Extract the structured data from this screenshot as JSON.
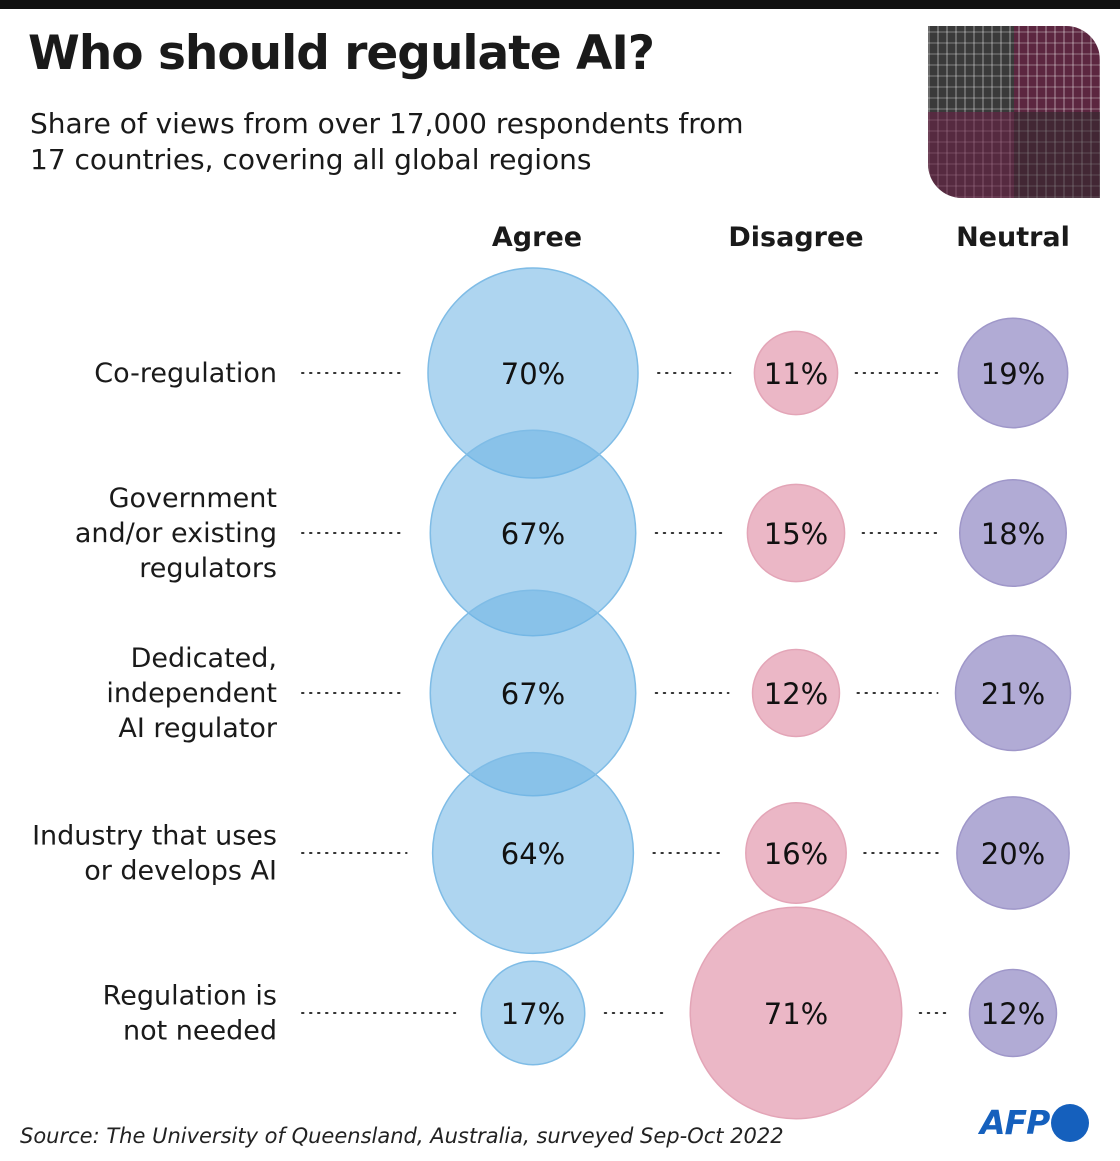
{
  "title": "Who should regulate AI?",
  "subtitle": "Share of views from over 17,000 respondents from 17 countries, covering all global regions",
  "source": "Source: The University of Queensland, Australia, surveyed Sep-Oct 2022",
  "logo": "AFP",
  "chart_data": {
    "type": "bubble",
    "columns": [
      "Agree",
      "Disagree",
      "Neutral"
    ],
    "rows": [
      {
        "label": [
          "Co-regulation"
        ],
        "values": [
          70,
          11,
          19
        ]
      },
      {
        "label": [
          "Government",
          "and/or existing",
          "regulators"
        ],
        "values": [
          67,
          15,
          18
        ]
      },
      {
        "label": [
          "Dedicated,",
          "independent",
          "AI regulator"
        ],
        "values": [
          67,
          12,
          21
        ]
      },
      {
        "label": [
          "Industry that uses",
          "or develops AI"
        ],
        "values": [
          64,
          16,
          20
        ]
      },
      {
        "label": [
          "Regulation is",
          "not needed"
        ],
        "values": [
          17,
          71,
          12
        ]
      }
    ],
    "unit": "%",
    "colors": {
      "Agree": "#6cb3e3",
      "Disagree": "#eab3c3",
      "Neutral": "#ada6d3"
    }
  }
}
